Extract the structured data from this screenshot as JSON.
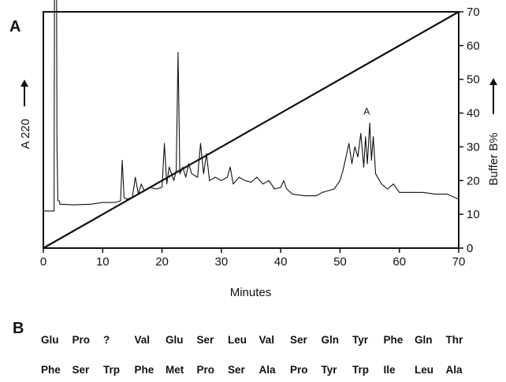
{
  "panel_a_label": "A",
  "panel_b_label": "B",
  "chart_data": {
    "type": "line",
    "xlabel": "Minutes",
    "ylabel": "A 220",
    "y2label": "Buffer B%",
    "xlim": [
      0,
      70
    ],
    "x_ticks": [
      0,
      10,
      20,
      30,
      40,
      50,
      60,
      70
    ],
    "y2lim": [
      0,
      70
    ],
    "y2_ticks": [
      0,
      10,
      20,
      30,
      40,
      50,
      60,
      70
    ],
    "peak_label": "A",
    "peak_label_x": 54.5,
    "series": [
      {
        "role": "absorbance",
        "x": [
          0,
          1.8,
          1.9,
          2.05,
          2.2,
          2.3,
          2.45,
          2.55,
          2.7,
          2.8,
          3,
          5,
          8,
          10,
          12,
          13,
          13.3,
          13.6,
          14,
          15,
          15.5,
          16,
          16.5,
          17,
          18,
          19,
          20,
          20.4,
          20.8,
          21.2,
          22,
          22.4,
          22.7,
          23,
          23.5,
          24,
          24.5,
          25,
          26,
          26.5,
          27,
          27.5,
          28,
          29,
          30,
          31,
          31.5,
          32,
          33,
          34,
          35,
          36,
          37,
          38,
          39,
          40,
          40.5,
          41,
          42,
          44,
          46,
          47,
          48,
          49,
          50,
          50.5,
          51,
          51.5,
          52,
          52.5,
          53,
          53.5,
          54,
          54.3,
          54.6,
          55,
          55.3,
          55.6,
          56,
          57,
          58,
          59,
          60,
          62,
          64,
          66,
          68,
          70
        ],
        "y": [
          11,
          11,
          100,
          100,
          90,
          30,
          14,
          14,
          14,
          13,
          13,
          12.8,
          13,
          13.5,
          13.5,
          14,
          26,
          15,
          14.5,
          15,
          21,
          16,
          19,
          17,
          18,
          17.5,
          18,
          31,
          19,
          24,
          20,
          23,
          58,
          22,
          24,
          21,
          25,
          22,
          21,
          31,
          22,
          28,
          20,
          21,
          20,
          21,
          24,
          19,
          21,
          20,
          19.5,
          21,
          19,
          20,
          17.5,
          18,
          20,
          17.5,
          16,
          15.5,
          15.5,
          16.5,
          17,
          17.5,
          20,
          23,
          27,
          31,
          25,
          30,
          27,
          34,
          24,
          33,
          25,
          37,
          26,
          33,
          22,
          19,
          17.5,
          19,
          16.5,
          16.5,
          16.5,
          16,
          16,
          14.5
        ]
      },
      {
        "role": "gradient",
        "x": [
          0,
          70
        ],
        "y": [
          0,
          70
        ]
      }
    ]
  },
  "sequence_rows": [
    [
      "Glu",
      "Pro",
      "?",
      "Val",
      "Glu",
      "Ser",
      "Leu",
      "Val",
      "Ser",
      "Gln",
      "Tyr",
      "Phe",
      "Gln",
      "Thr"
    ],
    [
      "Phe",
      "Ser",
      "Trp",
      "Phe",
      "Met",
      "Pro",
      "Ser",
      "Ala",
      "Pro",
      "Tyr",
      "Trp",
      "Ile",
      "Leu",
      "Ala"
    ]
  ]
}
